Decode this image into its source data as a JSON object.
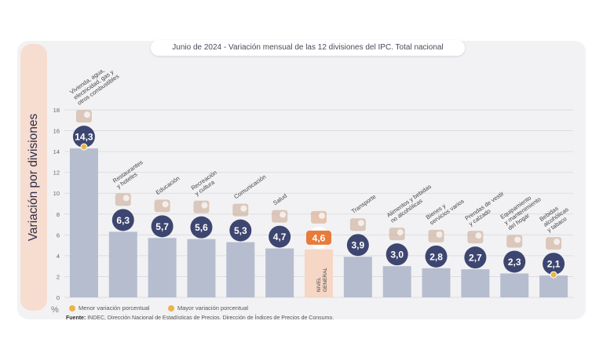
{
  "chart_data": {
    "type": "bar",
    "title_date": "Junio de 2024",
    "title_rest": " - Variación mensual de las 12 divisiones del IPC. Total nacional",
    "ylabel": "Variación por divisiones",
    "yunit": "%",
    "ylim": [
      0,
      18
    ],
    "yticks": [
      0,
      2,
      4,
      6,
      8,
      10,
      12,
      14,
      16,
      18
    ],
    "categories": [
      "Vivienda, agua, electricidad, gas y otros combustibles",
      "Restaurantes y hoteles",
      "Educación",
      "Recreación y cultura",
      "Comunicación",
      "Salud",
      "Nivel General",
      "Transporte",
      "Alimentos y bebidas no alcohólicas",
      "Bienes y servicios varios",
      "Prendas de vestir y calzado",
      "Equipamiento y mantenimiento del hogar",
      "Bebidas alcohólicas y tabaco"
    ],
    "category_lines": [
      [
        "Vivienda, agua,",
        "electricidad, gas y",
        "otros combustibles"
      ],
      [
        "Restaurantes",
        "y hoteles"
      ],
      [
        "Educación"
      ],
      [
        "Recreación",
        "y cultura"
      ],
      [
        "Comunicación"
      ],
      [
        "Salud"
      ],
      [
        "NIVEL",
        "GENERAL"
      ],
      [
        "Transporte"
      ],
      [
        "Alimentos y bebidas",
        "no alcohólicas"
      ],
      [
        "Bienes y",
        "servicios varios"
      ],
      [
        "Prendas de vestir",
        "y calzado"
      ],
      [
        "Equipamiento",
        "y mantenimiento",
        "del hogar"
      ],
      [
        "Bebidas",
        "alcohólicas",
        "y tabaco"
      ]
    ],
    "values": [
      14.3,
      6.3,
      5.7,
      5.6,
      5.3,
      4.7,
      4.6,
      3.9,
      3.0,
      2.8,
      2.7,
      2.3,
      2.1
    ],
    "value_labels": [
      "14,3",
      "6,3",
      "5,7",
      "5,6",
      "5,3",
      "4,7",
      "4,6",
      "3,9",
      "3,0",
      "2,8",
      "2,7",
      "2,3",
      "2,1"
    ],
    "highlight_index": 6,
    "max_index": 0,
    "min_index": 12,
    "icons": [
      "tools-lightbulb-icon",
      "plate-cutlery-icon",
      "books-icon",
      "sun-umbrella-icon",
      "mobile-phone-icon",
      "first-aid-kit-icon",
      "shopping-bag-icon",
      "sube-card-icon",
      "food-basket-icon",
      "comb-scissors-icon",
      "clothing-icon",
      "air-conditioner-icon",
      "wine-bottle-glass-icon"
    ],
    "colors": {
      "bar": "#b6bdcf",
      "highlight_bar": "#f6d6c4",
      "badge": "#3d4670",
      "highlight_badge": "#e87a3a",
      "marker": "#e8b54a",
      "grid": "#d9d9df"
    },
    "grid": true
  },
  "legend": {
    "min_label": "Menor variación porcentual",
    "max_label": "Mayor variación porcentual"
  },
  "source": {
    "prefix": "Fuente:",
    "text": " INDEC, Dirección Nacional de Estadísticas de Precios. Dirección de Índices de Precios de Consumo."
  }
}
